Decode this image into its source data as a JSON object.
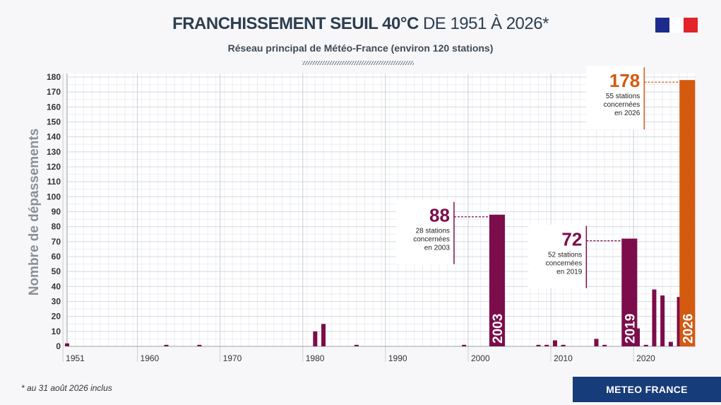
{
  "header": {
    "title_strong": "FRANCHISSEMENT SEUIL 40°C",
    "title_rest": " DE 1951 À 2026*",
    "subtitle": "Réseau principal de Météo-France (environ 120 stations)"
  },
  "footer": {
    "footnote": "* au 31 août 2026 inclus",
    "brand": "METEO FRANCE"
  },
  "colors": {
    "bar": "#7d0c4b",
    "highlight": "#d35a0f",
    "flag_blue": "#1d2c8c",
    "flag_red": "#e2232b"
  },
  "chart_data": {
    "type": "bar",
    "ylabel": "Nombre de dépassements",
    "ylim": [
      0,
      180
    ],
    "yticks": [
      0,
      10,
      20,
      30,
      40,
      50,
      60,
      70,
      80,
      90,
      100,
      110,
      120,
      130,
      140,
      150,
      160,
      170,
      180
    ],
    "xlim": [
      1951,
      2027
    ],
    "xticks": [
      1951,
      1960,
      1970,
      1980,
      1990,
      2000,
      2010,
      2020
    ],
    "series": [
      {
        "x": [
          1951,
          1963,
          1967,
          1981,
          1982,
          1986,
          1999,
          2003,
          2008,
          2009,
          2010,
          2011,
          2015,
          2016,
          2019,
          2020,
          2021,
          2022,
          2023,
          2024,
          2025,
          2026
        ],
        "values": [
          2,
          1,
          1,
          10,
          15,
          1,
          1,
          88,
          1,
          1,
          4,
          1,
          5,
          1,
          72,
          12,
          1,
          38,
          34,
          3,
          33,
          178
        ]
      }
    ],
    "bar_labels": [
      {
        "x": 2003,
        "text": "2003"
      },
      {
        "x": 2019,
        "text": "2019"
      },
      {
        "x": 2026,
        "text": "2026"
      }
    ],
    "annotations": [
      {
        "x": 2003,
        "value": "88",
        "lines": [
          "28 stations",
          "concernées",
          "en 2003"
        ],
        "color": "#7d0c4b"
      },
      {
        "x": 2019,
        "value": "72",
        "lines": [
          "52 stations",
          "concernées",
          "en 2019"
        ],
        "color": "#7d0c4b"
      },
      {
        "x": 2026,
        "value": "178",
        "lines": [
          "55 stations",
          "concernées",
          "en 2026"
        ],
        "color": "#d35a0f"
      }
    ],
    "highlight_x": 2026
  }
}
